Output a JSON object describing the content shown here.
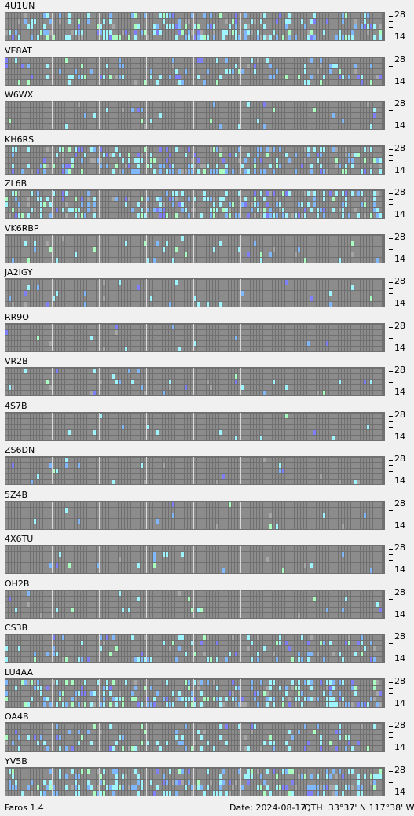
{
  "colors": {
    "grid_bg": "#707070",
    "cell_empty": "#8c8c8c",
    "divider": "#d9d9d9",
    "cyan": "#9ff5ff",
    "blue": "#80b8ff",
    "green": "#a8ffc0",
    "purple": "#8080ff",
    "grey": "#a6a6a6"
  },
  "axis": {
    "top_label": "28",
    "bottom_label": "14"
  },
  "stations": [
    {
      "name": "4U1UN",
      "level": 3
    },
    {
      "name": "VE8AT",
      "level": 2
    },
    {
      "name": "W6WX",
      "level": 1
    },
    {
      "name": "KH6RS",
      "level": 3
    },
    {
      "name": "ZL6B",
      "level": 3
    },
    {
      "name": "VK6RBP",
      "level": 1
    },
    {
      "name": "JA2IGY",
      "level": 1
    },
    {
      "name": "RR9O",
      "level": 0
    },
    {
      "name": "VR2B",
      "level": 1
    },
    {
      "name": "4S7B",
      "level": 0
    },
    {
      "name": "ZS6DN",
      "level": 1
    },
    {
      "name": "5Z4B",
      "level": 0
    },
    {
      "name": "4X6TU",
      "level": 0
    },
    {
      "name": "OH2B",
      "level": 0
    },
    {
      "name": "CS3B",
      "level": 2
    },
    {
      "name": "LU4AA",
      "level": 3
    },
    {
      "name": "OA4B",
      "level": 2
    },
    {
      "name": "YV5B",
      "level": 3
    }
  ],
  "footer": {
    "app": "Faros 1.4",
    "date": "Date: 2024-08-17",
    "qth": "QTH: 33°37' N  117°38' W"
  }
}
